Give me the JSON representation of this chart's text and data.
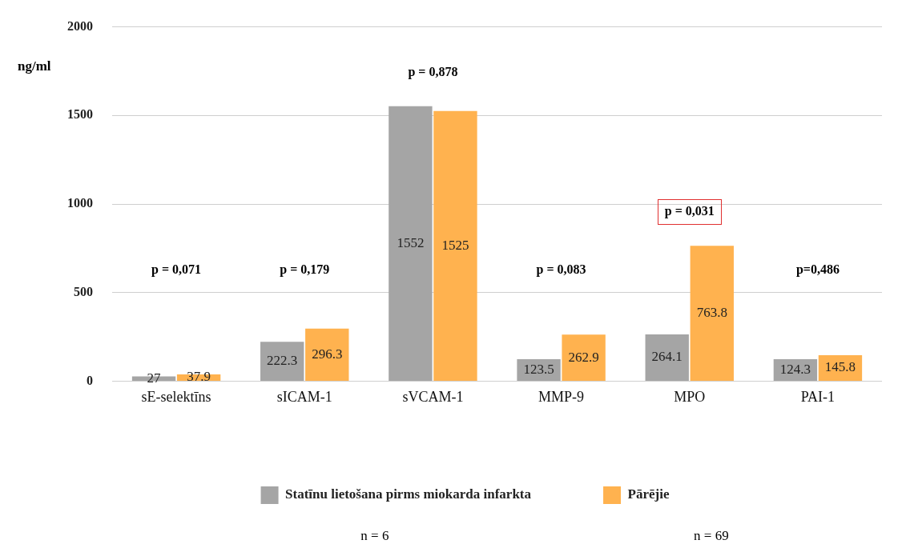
{
  "chart_data": {
    "type": "bar",
    "ylabel": "ng/ml",
    "categories": [
      "sE-selektīns",
      "sICAM-1",
      "sVCAM-1",
      "MMP-9",
      "MPO",
      "PAI-1"
    ],
    "series": [
      {
        "name": "Statīnu lietošana pirms miokarda infarkta",
        "color": "#a5a5a5",
        "values": [
          27,
          222.3,
          1552,
          123.5,
          264.1,
          124.3
        ]
      },
      {
        "name": "Pārējie",
        "color": "#ffb24f",
        "values": [
          37.9,
          296.3,
          1525,
          262.9,
          763.8,
          145.8
        ]
      }
    ],
    "ylim": [
      0,
      2000
    ],
    "yticks": [
      0,
      500,
      1000,
      1500,
      2000
    ],
    "grid": "y",
    "legend": "bottom",
    "data_labels": true,
    "annotations": [
      "p = 0,071",
      "p = 0,179",
      "p = 0,878",
      "p = 0,083",
      "p = 0,031",
      "p=0,486",
      "n = 6",
      "n = 69"
    ]
  }
}
